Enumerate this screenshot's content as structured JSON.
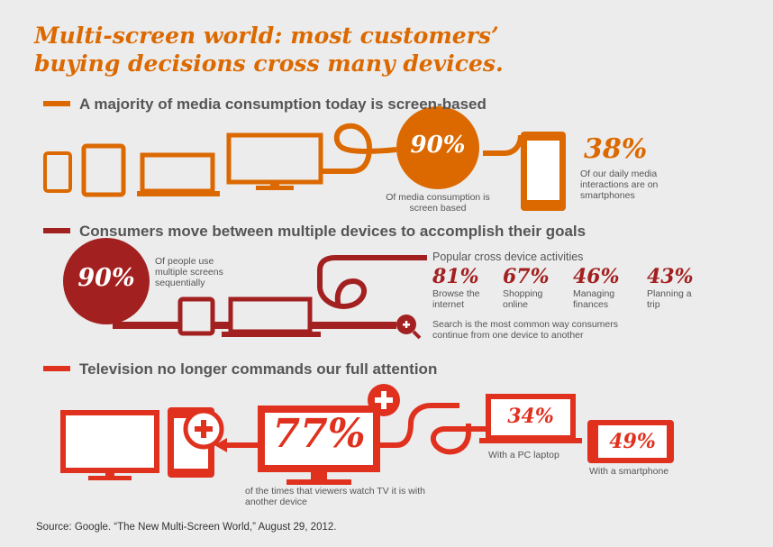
{
  "title": {
    "line1": "Multi-screen world: most customers’",
    "line2": "buying decisions cross many devices."
  },
  "colors": {
    "orange": "#dc6900",
    "maroon": "#a32020",
    "red": "#e0301e",
    "text": "#555555",
    "background": "#ececec"
  },
  "section1": {
    "heading": "A majority of media consumption today is screen-based",
    "circle_value": "90%",
    "circle_caption": "Of media consumption is screen based",
    "stat_value": "38%",
    "stat_caption": "Of our daily media interactions are on smartphones",
    "device_icons": [
      "smartphone-icon",
      "tablet-icon",
      "laptop-icon",
      "monitor-icon",
      "smartphone-icon"
    ]
  },
  "section2": {
    "heading": "Consumers move between multiple devices to accomplish their goals",
    "circle_value": "90%",
    "circle_caption": "Of people use multiple screens sequentially",
    "activities_title": "Popular cross device activities",
    "activities": [
      {
        "value": "81%",
        "label": "Browse the internet"
      },
      {
        "value": "67%",
        "label": "Shopping online"
      },
      {
        "value": "46%",
        "label": "Managing finances"
      },
      {
        "value": "43%",
        "label": "Planning a trip"
      }
    ],
    "search_note": "Search is the most common way consumers continue from one device to another",
    "icons": [
      "smartphone-icon",
      "laptop-icon",
      "search-plus-icon"
    ]
  },
  "section3": {
    "heading": "Television no longer commands our full attention",
    "tv_value": "77%",
    "tv_caption": "of the times that viewers watch TV it is with another device",
    "laptop_value": "34%",
    "laptop_caption": "With a PC laptop",
    "phone_value": "49%",
    "phone_caption": "With a smartphone",
    "icons": [
      "tv-icon",
      "tablet-plus-icon",
      "plus-icon",
      "laptop-icon",
      "smartphone-icon"
    ]
  },
  "source": "Source: Google. “The New Multi-Screen World,” August 29, 2012."
}
